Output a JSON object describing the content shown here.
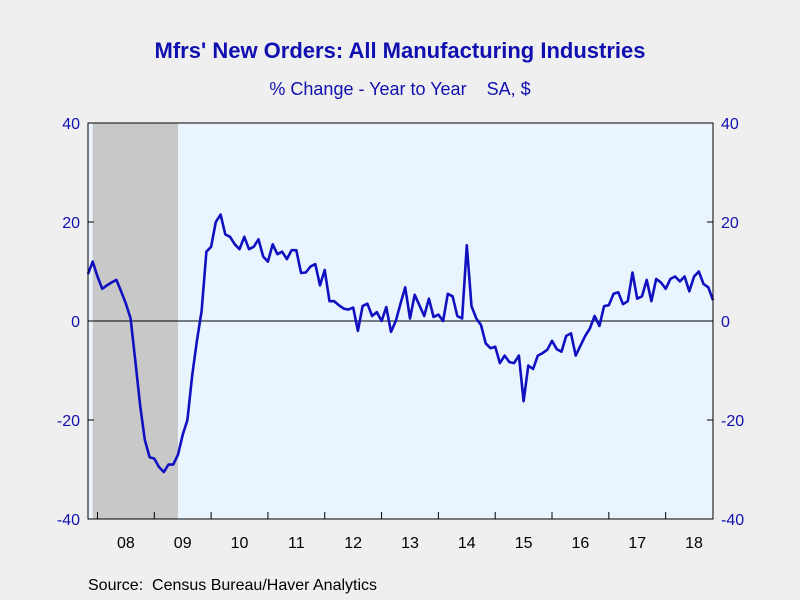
{
  "chart_data": {
    "type": "line",
    "title": "Mfrs' New Orders: All Manufacturing Industries",
    "subtitle": "% Change - Year to Year    SA, $",
    "source": "Source:  Census Bureau/Haver Analytics",
    "ylim": [
      -40,
      40
    ],
    "y_ticks": [
      "40",
      "20",
      "0",
      "-20",
      "-40"
    ],
    "x_tick_labels": [
      "08",
      "09",
      "10",
      "11",
      "12",
      "13",
      "14",
      "15",
      "16",
      "17",
      "18"
    ],
    "x_range": [
      "2007-11",
      "2018-11"
    ],
    "shaded_period": [
      "2007-12",
      "2009-06"
    ],
    "grid": false,
    "zero_line": true,
    "colors": {
      "line": "#1010c0",
      "plot_bg": "#eaf4ff",
      "recession": "#c8c8c8",
      "text": "#1010b0"
    },
    "series": [
      {
        "start": "2007-11",
        "values": [
          9.5,
          12.0,
          9.0,
          6.5,
          7.2,
          7.8,
          8.3,
          6.0,
          3.5,
          0.5,
          -8.0,
          -17.0,
          -24.0,
          -27.5,
          -27.8,
          -29.5,
          -30.5,
          -29.0,
          -29.0,
          -27.0,
          -23.0,
          -20.0,
          -11.0,
          -4.0,
          2.0,
          14.0,
          15.0,
          20.0,
          21.5,
          17.5,
          17.0,
          15.5,
          14.5,
          17.0,
          14.5,
          15.0,
          16.5,
          13.0,
          12.0,
          15.5,
          13.5,
          14.0,
          12.5,
          14.3,
          14.3,
          9.7,
          9.8,
          11.0,
          11.5,
          7.2,
          10.3,
          4.0,
          4.0,
          3.2,
          2.5,
          2.3,
          2.7,
          -2.0,
          3.0,
          3.5,
          1.0,
          1.8,
          0.0,
          2.8,
          -2.2,
          0.0,
          3.5,
          6.8,
          0.5,
          5.3,
          3.2,
          1.0,
          4.5,
          0.8,
          1.3,
          0.0,
          5.5,
          5.0,
          1.0,
          0.5,
          15.3,
          3.0,
          0.5,
          -0.8,
          -4.5,
          -5.5,
          -5.2,
          -8.5,
          -7.0,
          -8.3,
          -8.5,
          -7.0,
          -16.2,
          -9.0,
          -9.7,
          -7.0,
          -6.5,
          -5.8,
          -4.0,
          -5.7,
          -6.2,
          -3.0,
          -2.5,
          -7.0,
          -5.0,
          -3.0,
          -1.5,
          1.0,
          -1.0,
          3.0,
          3.2,
          5.5,
          5.8,
          3.4,
          4.0,
          9.8,
          4.5,
          5.0,
          8.3,
          4.0,
          8.5,
          7.8,
          6.5,
          8.5,
          9.0,
          8.0,
          9.0,
          6.0,
          9.0,
          10.0,
          7.5,
          6.8,
          4.2
        ]
      }
    ]
  }
}
